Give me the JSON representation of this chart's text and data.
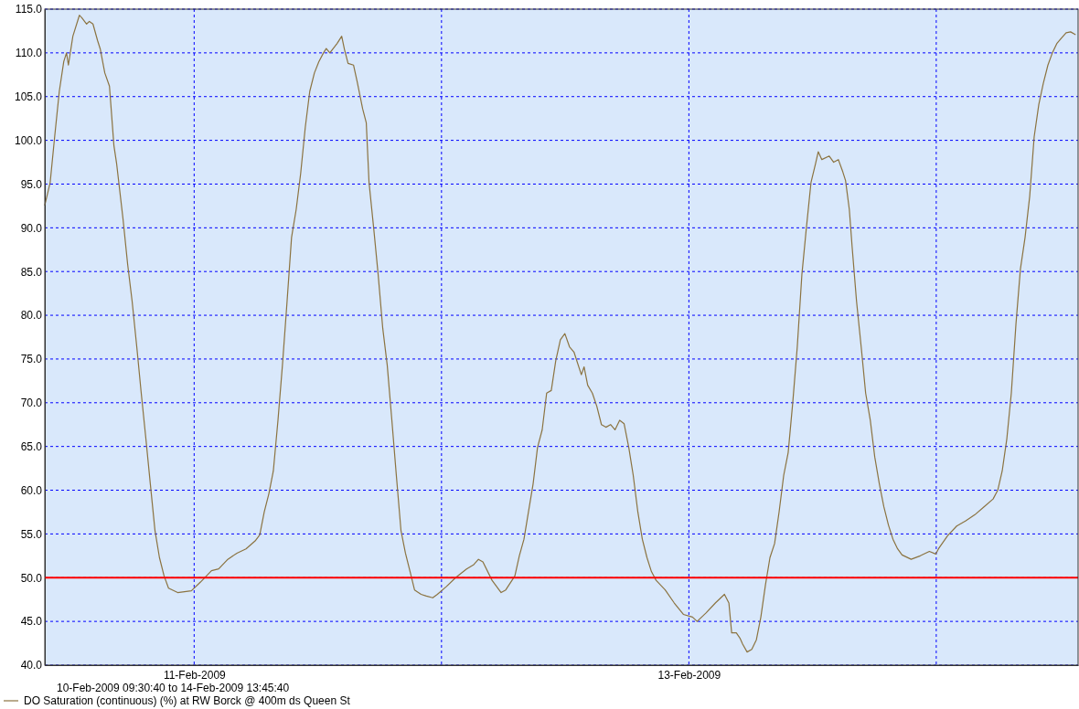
{
  "chart_data": {
    "type": "line",
    "xlim": [
      "2009-02-10T09:30:40",
      "2009-02-14T13:45:40"
    ],
    "xticks": [
      {
        "value": "2009-02-11",
        "label": "11-Feb-2009"
      },
      {
        "value": "2009-02-12",
        "label": null
      },
      {
        "value": "2009-02-13",
        "label": "13-Feb-2009"
      },
      {
        "value": "2009-02-14",
        "label": null
      }
    ],
    "ylim": [
      40,
      115
    ],
    "yticks": [
      {
        "value": 40,
        "label": "40.0"
      },
      {
        "value": 45,
        "label": "45.0"
      },
      {
        "value": 50,
        "label": "50.0"
      },
      {
        "value": 55,
        "label": "55.0"
      },
      {
        "value": 60,
        "label": "60.0"
      },
      {
        "value": 65,
        "label": "65.0"
      },
      {
        "value": 70,
        "label": "70.0"
      },
      {
        "value": 75,
        "label": "75.0"
      },
      {
        "value": 80,
        "label": "80.0"
      },
      {
        "value": 85,
        "label": "85.0"
      },
      {
        "value": 90,
        "label": "90.0"
      },
      {
        "value": 95,
        "label": "95.0"
      },
      {
        "value": 100,
        "label": "100.0"
      },
      {
        "value": 105,
        "label": "105.0"
      },
      {
        "value": 110,
        "label": "110.0"
      },
      {
        "value": 115,
        "label": "115.0"
      }
    ],
    "grid": true,
    "legend": "bottom",
    "marker": "none",
    "line_style": "solid",
    "annotations": [
      "10-Feb-2009 09:30:40 to 14-Feb-2009 13:45:40"
    ],
    "ref_lines": [
      {
        "axis": "y",
        "value": 50,
        "label": null,
        "color": "#ff0000"
      }
    ],
    "x": [
      "2009-02-10T09:31",
      "2009-02-10T10:02",
      "2009-02-10T10:28",
      "2009-02-10T10:55",
      "2009-02-10T11:21",
      "2009-02-10T11:37",
      "2009-02-10T11:48",
      "2009-02-10T12:14",
      "2009-02-10T12:52",
      "2009-02-10T13:07",
      "2009-02-10T13:34",
      "2009-02-10T13:50",
      "2009-02-10T14:11",
      "2009-02-10T14:38",
      "2009-02-10T14:54",
      "2009-02-10T15:20",
      "2009-02-10T15:47",
      "2009-02-10T16:13",
      "2009-02-10T16:29",
      "2009-02-10T17:06",
      "2009-02-10T17:33",
      "2009-02-10T17:59",
      "2009-02-10T18:26",
      "2009-02-10T18:52",
      "2009-02-10T19:19",
      "2009-02-10T19:45",
      "2009-02-10T20:12",
      "2009-02-10T20:38",
      "2009-02-10T21:05",
      "2009-02-10T21:31",
      "2009-02-10T22:24",
      "2009-02-10T23:44",
      "2009-02-11T00:37",
      "2009-02-11T01:41",
      "2009-02-11T02:23",
      "2009-02-11T03:16",
      "2009-02-11T04:09",
      "2009-02-11T05:02",
      "2009-02-11T05:55",
      "2009-02-11T06:22",
      "2009-02-11T06:48",
      "2009-02-11T07:15",
      "2009-02-11T07:41",
      "2009-02-11T08:08",
      "2009-02-11T08:34",
      "2009-02-11T09:01",
      "2009-02-11T09:27",
      "2009-02-11T09:54",
      "2009-02-11T10:20",
      "2009-02-11T10:47",
      "2009-02-11T11:13",
      "2009-02-11T11:40",
      "2009-02-11T12:06",
      "2009-02-11T12:33",
      "2009-02-11T12:49",
      "2009-02-11T13:10",
      "2009-02-11T13:53",
      "2009-02-11T14:19",
      "2009-02-11T14:35",
      "2009-02-11T14:56",
      "2009-02-11T15:28",
      "2009-02-11T15:49",
      "2009-02-11T16:21",
      "2009-02-11T16:42",
      "2009-02-11T16:58",
      "2009-02-11T17:25",
      "2009-02-11T17:51",
      "2009-02-11T18:18",
      "2009-02-11T18:44",
      "2009-02-11T19:11",
      "2009-02-11T19:37",
      "2009-02-11T20:04",
      "2009-02-11T20:30",
      "2009-02-11T20:57",
      "2009-02-11T21:23",
      "2009-02-11T22:01",
      "2009-02-11T22:32",
      "2009-02-11T23:09",
      "2009-02-11T23:36",
      "2009-02-12T00:29",
      "2009-02-12T01:22",
      "2009-02-12T02:26",
      "2009-02-12T03:08",
      "2009-02-12T03:35",
      "2009-02-12T04:01",
      "2009-02-12T04:54",
      "2009-02-12T05:47",
      "2009-02-12T06:14",
      "2009-02-12T07:07",
      "2009-02-12T07:33",
      "2009-02-12T08:00",
      "2009-02-12T08:26",
      "2009-02-12T08:53",
      "2009-02-12T09:19",
      "2009-02-12T09:46",
      "2009-02-12T10:12",
      "2009-02-12T10:39",
      "2009-02-12T11:05",
      "2009-02-12T11:32",
      "2009-02-12T11:58",
      "2009-02-12T12:25",
      "2009-02-12T12:51",
      "2009-02-12T13:34",
      "2009-02-12T13:50",
      "2009-02-12T14:11",
      "2009-02-12T14:38",
      "2009-02-12T15:04",
      "2009-02-12T15:31",
      "2009-02-12T15:57",
      "2009-02-12T16:24",
      "2009-02-12T16:50",
      "2009-02-12T17:17",
      "2009-02-12T17:43",
      "2009-02-12T18:10",
      "2009-02-12T18:36",
      "2009-02-12T19:03",
      "2009-02-12T19:29",
      "2009-02-12T19:56",
      "2009-02-12T20:22",
      "2009-02-12T20:49",
      "2009-02-12T21:42",
      "2009-02-12T22:35",
      "2009-02-12T23:28",
      "2009-02-13T00:21",
      "2009-02-13T00:48",
      "2009-02-13T01:41",
      "2009-02-13T02:34",
      "2009-02-13T03:27",
      "2009-02-13T03:53",
      "2009-02-13T04:09",
      "2009-02-13T04:36",
      "2009-02-13T04:57",
      "2009-02-13T05:13",
      "2009-02-13T05:39",
      "2009-02-13T06:06",
      "2009-02-13T06:33",
      "2009-02-13T06:59",
      "2009-02-13T07:26",
      "2009-02-13T07:52",
      "2009-02-13T08:19",
      "2009-02-13T08:45",
      "2009-02-13T09:12",
      "2009-02-13T09:38",
      "2009-02-13T10:05",
      "2009-02-13T10:31",
      "2009-02-13T10:58",
      "2009-02-13T11:24",
      "2009-02-13T11:51",
      "2009-02-13T12:17",
      "2009-02-13T12:33",
      "2009-02-13T12:54",
      "2009-02-13T13:37",
      "2009-02-13T14:03",
      "2009-02-13T14:30",
      "2009-02-13T14:56",
      "2009-02-13T15:12",
      "2009-02-13T15:34",
      "2009-02-13T15:50",
      "2009-02-13T16:16",
      "2009-02-13T16:43",
      "2009-02-13T17:09",
      "2009-02-13T17:36",
      "2009-02-13T18:02",
      "2009-02-13T18:29",
      "2009-02-13T18:55",
      "2009-02-13T19:22",
      "2009-02-13T19:48",
      "2009-02-13T20:15",
      "2009-02-13T20:41",
      "2009-02-13T21:34",
      "2009-02-13T22:27",
      "2009-02-13T23:20",
      "2009-02-13T23:57",
      "2009-02-14T00:13",
      "2009-02-14T01:06",
      "2009-02-14T01:59",
      "2009-02-14T02:52",
      "2009-02-14T03:45",
      "2009-02-14T04:38",
      "2009-02-14T05:31",
      "2009-02-14T05:58",
      "2009-02-14T06:24",
      "2009-02-14T06:51",
      "2009-02-14T07:17",
      "2009-02-14T07:44",
      "2009-02-14T08:10",
      "2009-02-14T08:37",
      "2009-02-14T09:04",
      "2009-02-14T09:30",
      "2009-02-14T09:57",
      "2009-02-14T10:23",
      "2009-02-14T10:50",
      "2009-02-14T11:16",
      "2009-02-14T11:43",
      "2009-02-14T12:09",
      "2009-02-14T12:36",
      "2009-02-14T13:02",
      "2009-02-14T13:29"
    ],
    "series": [
      {
        "name": "DO Saturation (continuous) (%) at RW Borck @ 400m ds Queen St",
        "color": "#8b7340",
        "values": [
          92.6,
          95.2,
          100.4,
          105.6,
          109.0,
          110.0,
          108.6,
          111.9,
          114.3,
          114.0,
          113.3,
          113.6,
          113.3,
          111.4,
          110.4,
          107.7,
          106.2,
          99.4,
          97.3,
          91.0,
          85.8,
          81.6,
          76.4,
          71.1,
          65.9,
          60.7,
          55.4,
          52.3,
          50.2,
          48.8,
          48.3,
          48.5,
          49.5,
          50.8,
          51.0,
          52.1,
          52.8,
          53.3,
          54.2,
          54.9,
          57.5,
          59.6,
          62.2,
          68.0,
          74.3,
          81.6,
          88.9,
          92.1,
          96.2,
          101.5,
          105.6,
          107.7,
          109.0,
          110.0,
          110.5,
          110.0,
          111.1,
          111.9,
          110.4,
          108.8,
          108.6,
          106.7,
          103.6,
          102.0,
          95.2,
          90.0,
          84.7,
          78.5,
          74.3,
          68.0,
          61.7,
          55.4,
          52.8,
          50.7,
          48.6,
          48.1,
          47.9,
          47.7,
          48.1,
          49.0,
          50.0,
          51.0,
          51.5,
          52.1,
          51.8,
          49.7,
          48.3,
          48.6,
          50.2,
          52.5,
          54.4,
          57.5,
          60.7,
          64.9,
          66.9,
          71.1,
          71.4,
          74.8,
          77.2,
          77.9,
          76.4,
          75.8,
          73.2,
          74.1,
          72.0,
          71.1,
          69.6,
          67.5,
          67.2,
          67.5,
          66.9,
          68.0,
          67.6,
          64.9,
          61.7,
          57.5,
          54.4,
          52.3,
          50.7,
          49.7,
          48.6,
          47.1,
          45.8,
          45.5,
          45.0,
          46.0,
          47.1,
          48.1,
          47.1,
          43.7,
          43.7,
          43.1,
          42.4,
          41.5,
          41.8,
          42.9,
          45.5,
          49.2,
          52.3,
          53.9,
          57.5,
          61.7,
          64.3,
          70.1,
          76.4,
          84.7,
          90.0,
          95.2,
          97.3,
          98.7,
          97.8,
          98.2,
          97.5,
          97.8,
          96.4,
          95.4,
          92.1,
          87.9,
          81.6,
          76.4,
          71.1,
          68.0,
          63.8,
          60.7,
          58.1,
          56.0,
          54.4,
          53.3,
          52.6,
          52.1,
          52.5,
          53.0,
          52.7,
          53.3,
          54.8,
          55.9,
          56.5,
          57.2,
          58.1,
          59.0,
          60.0,
          62.2,
          65.9,
          71.1,
          79.0,
          85.3,
          88.9,
          93.6,
          100.4,
          104.1,
          106.5,
          108.6,
          110.0,
          111.1,
          111.7,
          112.3,
          112.4,
          112.1
        ]
      }
    ]
  }
}
